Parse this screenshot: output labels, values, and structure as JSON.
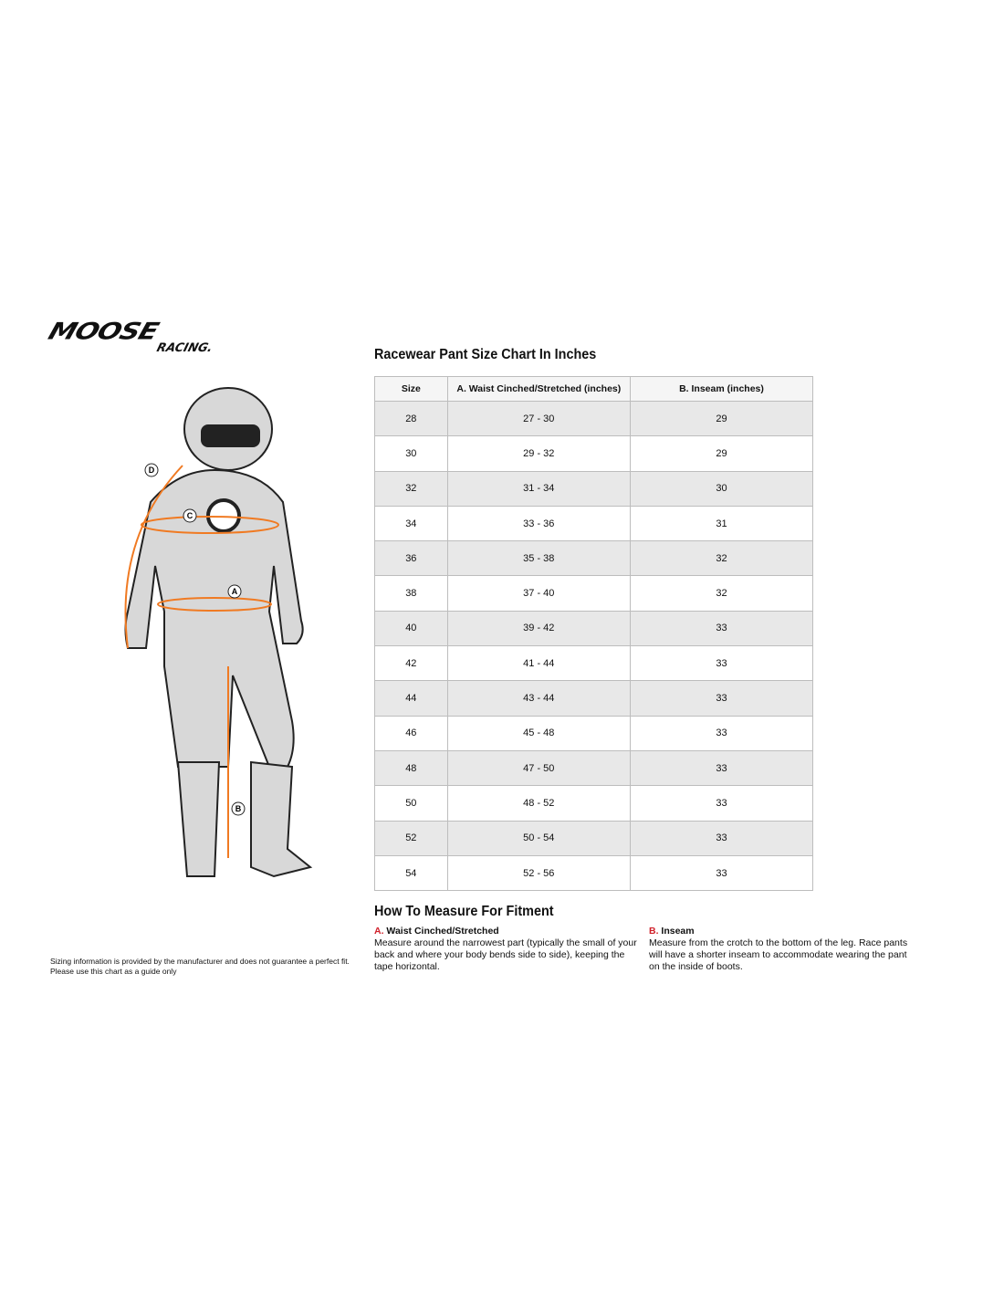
{
  "brand": {
    "logo_text": "MOOSE",
    "logo_sub": "RACING."
  },
  "title": "Racewear Pant Size Chart In Inches",
  "table": {
    "headers": [
      "Size",
      "A. Waist Cinched/Stretched (inches)",
      "B. Inseam (inches)"
    ],
    "rows": [
      [
        "28",
        "27 - 30",
        "29"
      ],
      [
        "30",
        "29 - 32",
        "29"
      ],
      [
        "32",
        "31 - 34",
        "30"
      ],
      [
        "34",
        "33 - 36",
        "31"
      ],
      [
        "36",
        "35 - 38",
        "32"
      ],
      [
        "38",
        "37 - 40",
        "32"
      ],
      [
        "40",
        "39 - 42",
        "33"
      ],
      [
        "42",
        "41 - 44",
        "33"
      ],
      [
        "44",
        "43 - 44",
        "33"
      ],
      [
        "46",
        "45 - 48",
        "33"
      ],
      [
        "48",
        "47 - 50",
        "33"
      ],
      [
        "50",
        "48 - 52",
        "33"
      ],
      [
        "52",
        "50 - 54",
        "33"
      ],
      [
        "54",
        "52 - 56",
        "33"
      ]
    ]
  },
  "measure": {
    "heading": "How To Measure For Fitment",
    "a": {
      "letter": "A.",
      "label": "Waist Cinched/Stretched",
      "text": "Measure around the narrowest part (typically the small of your back and where your body bends side to side), keeping the tape horizontal."
    },
    "b": {
      "letter": "B.",
      "label": "Inseam",
      "text": "Measure from the crotch to the bottom of the leg. Race pants will have a shorter inseam to accommodate wearing the pant on the inside of boots."
    }
  },
  "figure": {
    "markers": [
      "A",
      "B",
      "C",
      "D"
    ],
    "accent": "#f07a22"
  },
  "disclaimer": "Sizing information is provided by the manufacturer and does not guarantee a perfect fit. Please use this chart as a guide only"
}
